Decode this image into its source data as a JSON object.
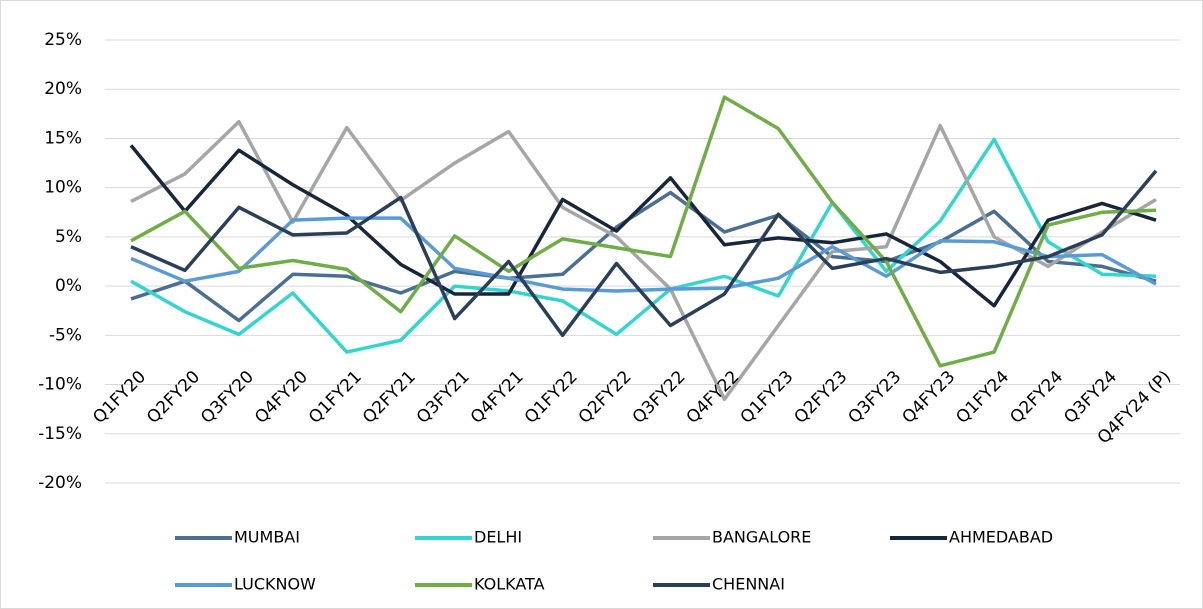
{
  "chart_data": {
    "type": "line",
    "categories": [
      "Q1FY20",
      "Q2FY20",
      "Q3FY20",
      "Q4FY20",
      "Q1FY21",
      "Q2FY21",
      "Q3FY21",
      "Q4FY21",
      "Q1FY22",
      "Q2FY22",
      "Q3FY22",
      "Q4FY22",
      "Q1FY23",
      "Q2FY23",
      "Q3FY23",
      "Q4FY23",
      "Q1FY24",
      "Q2FY24",
      "Q3FY24",
      "Q4FY24 (P)"
    ],
    "series": [
      {
        "name": "MUMBAI",
        "color": "#4a6f91",
        "values": [
          -1.3,
          0.5,
          -3.5,
          1.2,
          1.0,
          -0.7,
          1.5,
          0.8,
          1.2,
          6.0,
          9.5,
          5.5,
          7.2,
          3.0,
          2.5,
          4.5,
          7.6,
          2.5,
          2.0,
          0.5
        ]
      },
      {
        "name": "DELHI",
        "color": "#33d6cf",
        "values": [
          0.5,
          -2.6,
          -4.9,
          -0.7,
          -6.7,
          -5.5,
          0.0,
          -0.5,
          -1.5,
          -4.9,
          -0.3,
          1.0,
          -1.0,
          8.5,
          1.5,
          6.6,
          14.9,
          4.5,
          1.2,
          1.0
        ]
      },
      {
        "name": "BANGALORE",
        "color": "#a6a6a6",
        "values": [
          8.6,
          11.4,
          16.7,
          6.5,
          16.1,
          8.7,
          12.5,
          15.7,
          8.0,
          5.0,
          -0.3,
          -11.5,
          -4.0,
          3.5,
          4.0,
          16.3,
          5.0,
          2.0,
          5.5,
          8.8
        ]
      },
      {
        "name": "AHMEDABAD",
        "color": "#17263b",
        "values": [
          14.3,
          7.6,
          13.8,
          10.3,
          7.2,
          2.2,
          -0.8,
          -0.8,
          8.8,
          5.6,
          11.0,
          4.2,
          4.9,
          4.4,
          5.3,
          2.5,
          -2.0,
          6.7,
          8.4,
          6.7
        ]
      },
      {
        "name": "LUCKNOW",
        "color": "#5b9bd5",
        "values": [
          2.8,
          0.5,
          1.5,
          6.7,
          6.9,
          6.9,
          1.8,
          0.8,
          -0.3,
          -0.5,
          -0.3,
          -0.2,
          0.8,
          4.0,
          1.0,
          4.6,
          4.5,
          3.0,
          3.2,
          0.2
        ]
      },
      {
        "name": "KOLKATA",
        "color": "#70ad47",
        "values": [
          4.6,
          7.6,
          1.8,
          2.6,
          1.7,
          -2.6,
          5.1,
          1.5,
          4.8,
          3.9,
          3.0,
          19.2,
          16.0,
          8.5,
          2.5,
          -8.1,
          -6.7,
          6.2,
          7.5,
          7.7
        ]
      },
      {
        "name": "CHENNAI",
        "color": "#2b3f58",
        "values": [
          4.0,
          1.6,
          8.0,
          5.2,
          5.4,
          9.0,
          -3.3,
          2.5,
          -5.0,
          2.3,
          -4.0,
          -0.8,
          7.3,
          1.8,
          2.8,
          1.4,
          2.0,
          3.0,
          5.2,
          11.7
        ]
      }
    ],
    "ylim": [
      -20,
      25
    ],
    "yticks": [
      {
        "value": -20,
        "label": "-20%"
      },
      {
        "value": -15,
        "label": "-15%"
      },
      {
        "value": -10,
        "label": "-10%"
      },
      {
        "value": -5,
        "label": "-5%"
      },
      {
        "value": 0,
        "label": "0%"
      },
      {
        "value": 5,
        "label": "5%"
      },
      {
        "value": 10,
        "label": "10%"
      },
      {
        "value": 15,
        "label": "15%"
      },
      {
        "value": 20,
        "label": "20%"
      },
      {
        "value": 25,
        "label": "25%"
      }
    ],
    "grid": true,
    "legend": "bottom"
  }
}
